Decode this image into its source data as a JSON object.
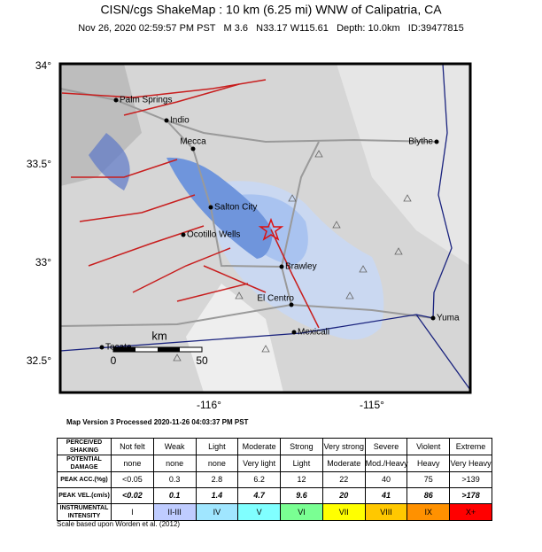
{
  "header": {
    "title": "CISN/cgs ShakeMap : 10 km (6.25 mi) WNW of Calipatria, CA",
    "subtitle": "Nov 26, 2020 02:59:57 PM PST   M 3.6   N33.17 W115.61   Depth: 10.0km   ID:39477815"
  },
  "map": {
    "latitude_labels": [
      "34°",
      "33.5°",
      "33°",
      "32.5°"
    ],
    "longitude_labels": [
      "-116°",
      "-115°"
    ],
    "cities": [
      "Palm Springs",
      "Indio",
      "Mecca",
      "Blythe",
      "Salton City",
      "Ocotillo Wells",
      "Brawley",
      "El Centro",
      "Yuma",
      "Mexicali",
      "Tecate"
    ],
    "scale": {
      "unit": "km",
      "start": "0",
      "end": "50"
    }
  },
  "map_version": "Map Version 3 Processed 2020-11-26 04:03:37 PM PST",
  "table": {
    "columns": [
      "Not felt",
      "Weak",
      "Light",
      "Moderate",
      "Strong",
      "Very strong",
      "Severe",
      "Violent",
      "Extreme"
    ],
    "rows": [
      {
        "label": "PERCEIVED SHAKING",
        "cells": [
          "Not felt",
          "Weak",
          "Light",
          "Moderate",
          "Strong",
          "Very strong",
          "Severe",
          "Violent",
          "Extreme"
        ]
      },
      {
        "label": "POTENTIAL DAMAGE",
        "cells": [
          "none",
          "none",
          "none",
          "Very light",
          "Light",
          "Moderate",
          "Mod./Heavy",
          "Heavy",
          "Very Heavy"
        ]
      },
      {
        "label": "PEAK ACC.(%g)",
        "cells": [
          "<0.05",
          "0.3",
          "2.8",
          "6.2",
          "12",
          "22",
          "40",
          "75",
          ">139"
        ]
      },
      {
        "label": "PEAK VEL.(cm/s)",
        "cells": [
          "<0.02",
          "0.1",
          "1.4",
          "4.7",
          "9.6",
          "20",
          "41",
          "86",
          ">178"
        ]
      },
      {
        "label": "INSTRUMENTAL INTENSITY",
        "cells": [
          "I",
          "II-III",
          "IV",
          "V",
          "VI",
          "VII",
          "VIII",
          "IX",
          "X+"
        ]
      }
    ]
  },
  "footer": "Scale based upon Worden et al. (2012)"
}
